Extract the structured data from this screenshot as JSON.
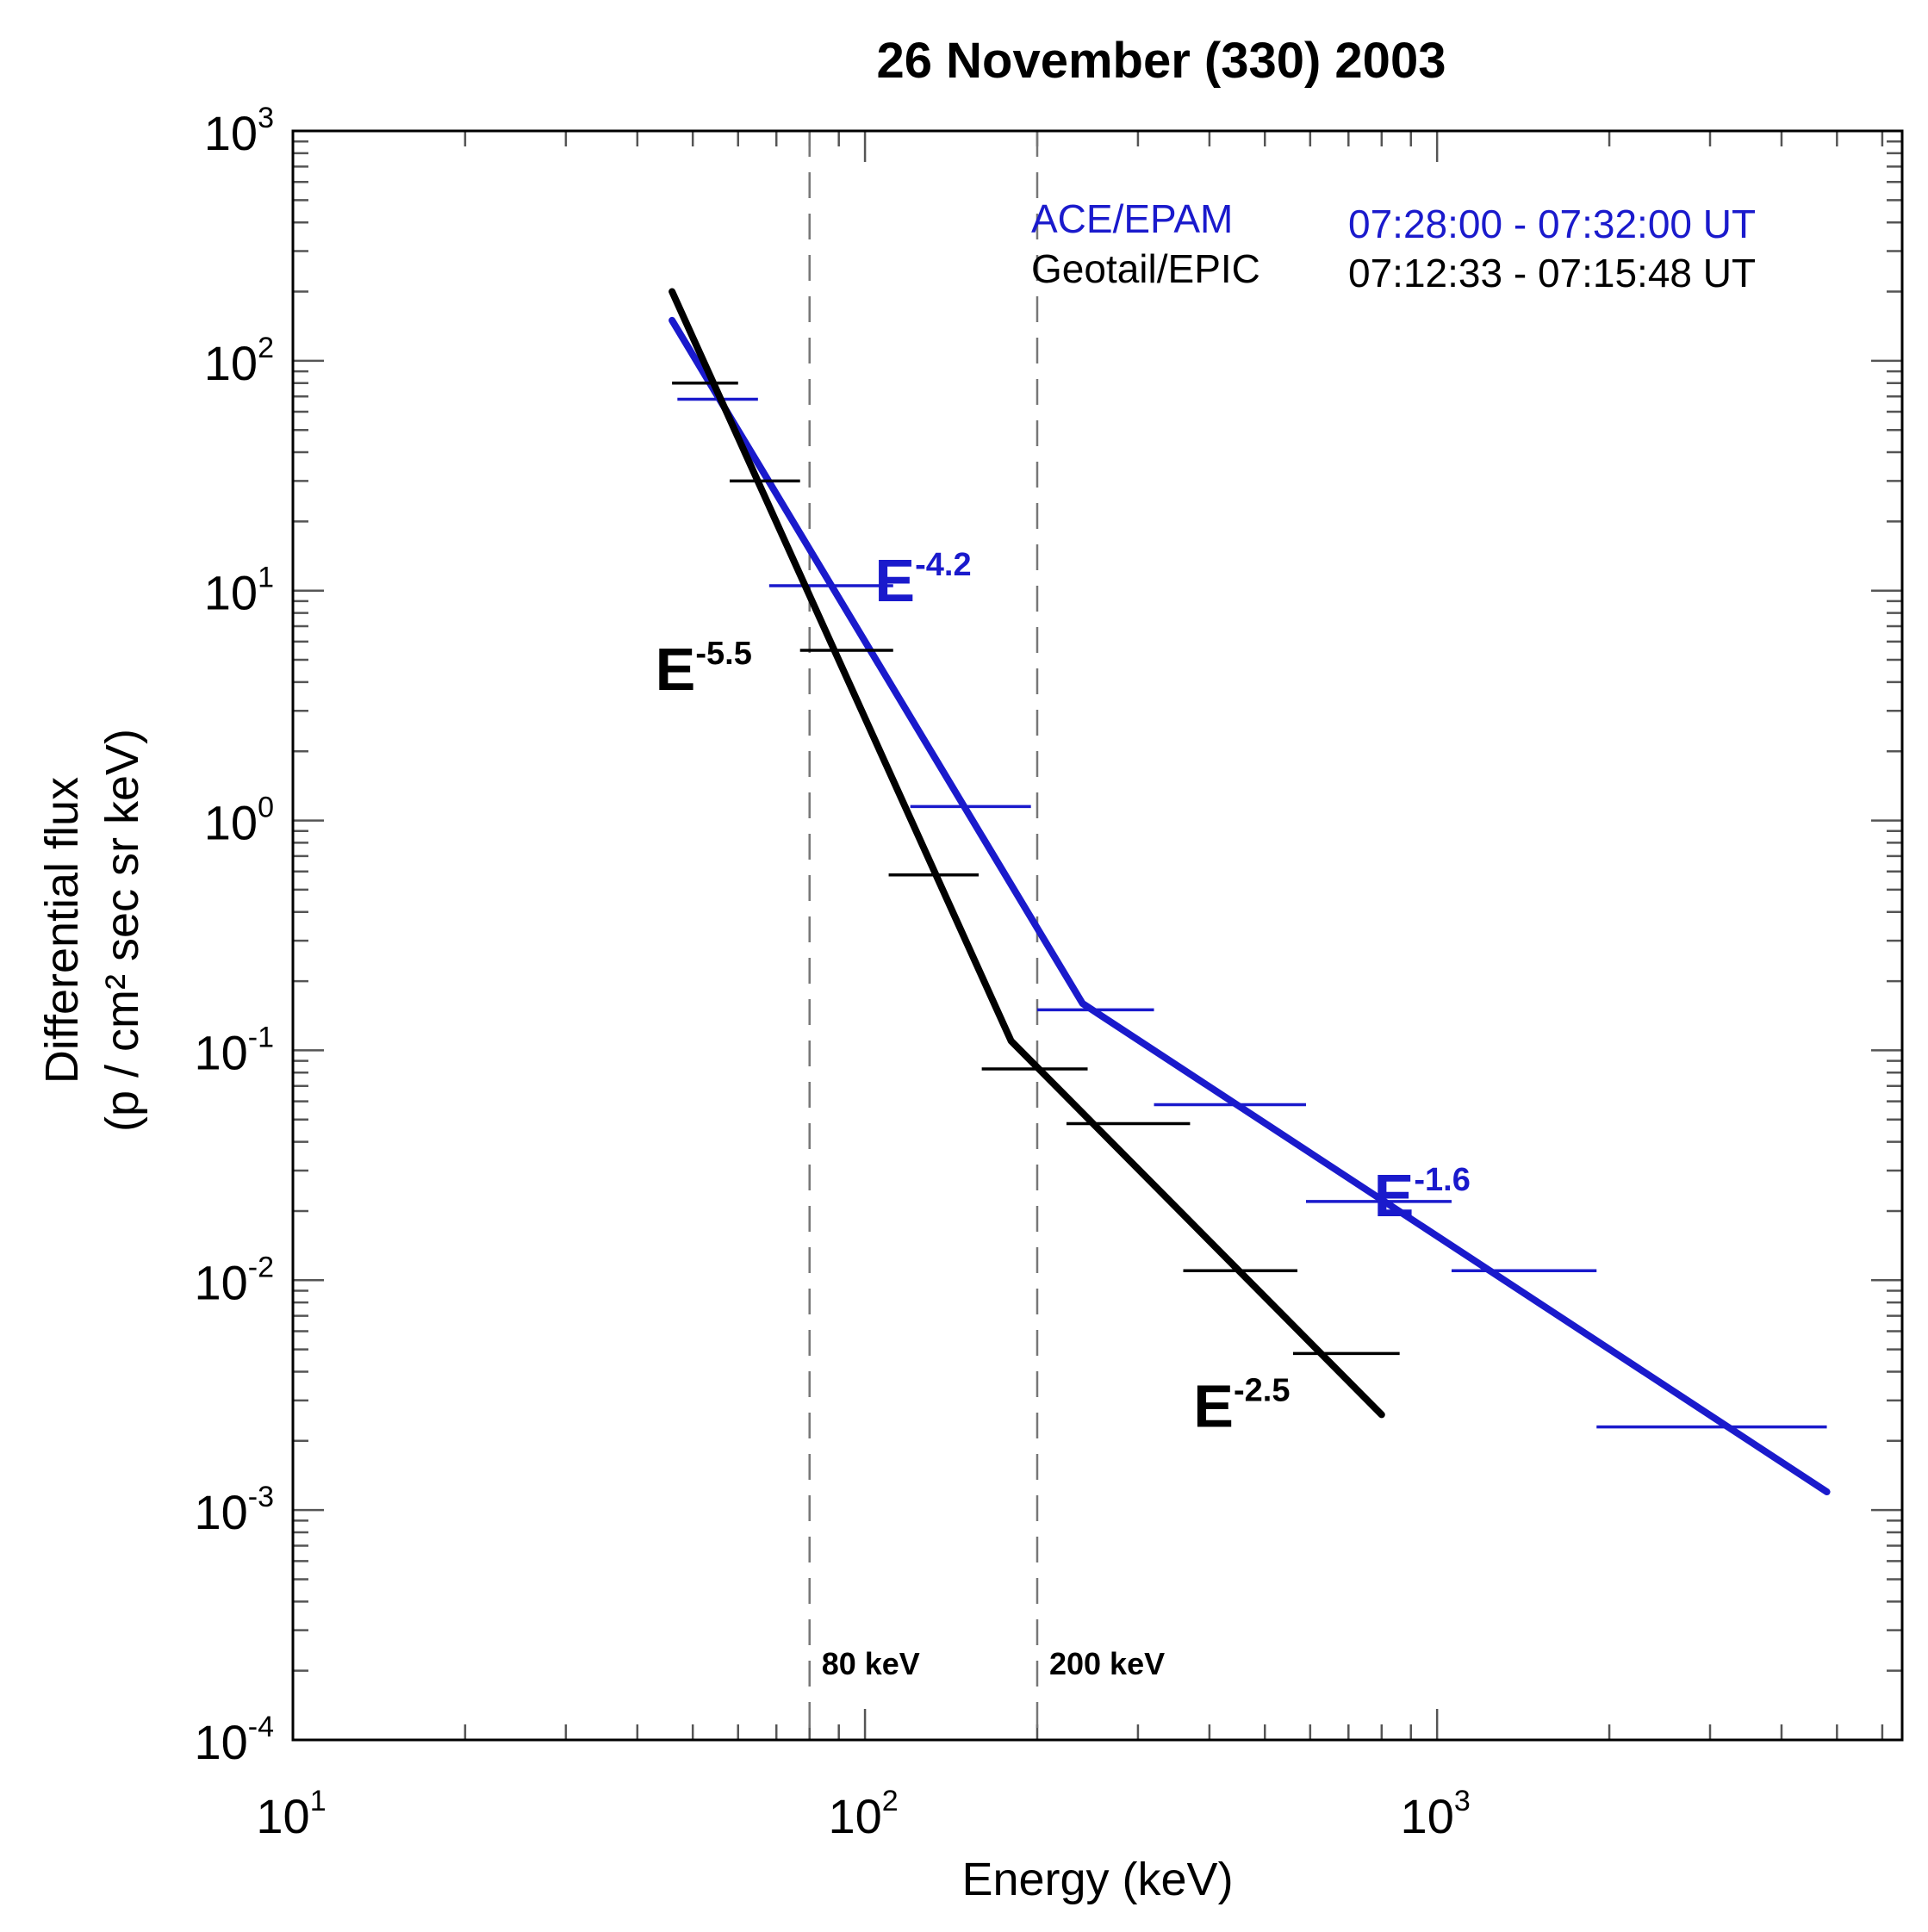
{
  "chart_data": {
    "type": "line",
    "title": "26 November (330) 2003",
    "xlabel": "Energy (keV)",
    "ylabel_line1": "Differential flux",
    "ylabel_line2": "(p / cm² sec sr keV)",
    "xscale": "log",
    "yscale": "log",
    "xlim": [
      10,
      6500
    ],
    "ylim": [
      0.0001,
      1000
    ],
    "x_ticks": [
      {
        "value": 10,
        "base": "10",
        "exp": "1"
      },
      {
        "value": 100,
        "base": "10",
        "exp": "2"
      },
      {
        "value": 1000,
        "base": "10",
        "exp": "3"
      }
    ],
    "y_ticks": [
      {
        "value": 0.0001,
        "base": "10",
        "exp": "-4"
      },
      {
        "value": 0.001,
        "base": "10",
        "exp": "-3"
      },
      {
        "value": 0.01,
        "base": "10",
        "exp": "-2"
      },
      {
        "value": 0.1,
        "base": "10",
        "exp": "-1"
      },
      {
        "value": 1,
        "base": "10",
        "exp": "0"
      },
      {
        "value": 10,
        "base": "10",
        "exp": "1"
      },
      {
        "value": 100,
        "base": "10",
        "exp": "2"
      },
      {
        "value": 1000,
        "base": "10",
        "exp": "3"
      }
    ],
    "reference_lines": [
      {
        "x": 80,
        "label": "80 keV"
      },
      {
        "x": 200,
        "label": "200 keV"
      }
    ],
    "series": [
      {
        "name": "ACE/EPAM",
        "time_range": "07:28:00 - 07:32:00 UT",
        "color": "#1a1acc",
        "bins": [
          {
            "x_lo": 47,
            "x_hi": 65,
            "y": 68
          },
          {
            "x_lo": 68,
            "x_hi": 112,
            "y": 10.5
          },
          {
            "x_lo": 120,
            "x_hi": 195,
            "y": 1.15
          },
          {
            "x_lo": 200,
            "x_hi": 320,
            "y": 0.15
          },
          {
            "x_lo": 320,
            "x_hi": 590,
            "y": 0.058
          },
          {
            "x_lo": 590,
            "x_hi": 1060,
            "y": 0.022
          },
          {
            "x_lo": 1060,
            "x_hi": 1900,
            "y": 0.011
          },
          {
            "x_lo": 1900,
            "x_hi": 4800,
            "y": 0.0023
          }
        ],
        "fit": [
          {
            "x": 46,
            "y": 150
          },
          {
            "x": 240,
            "y": 0.16
          },
          {
            "x": 4800,
            "y": 0.0012
          }
        ],
        "fit_labels": [
          {
            "base": "E",
            "exp": "-4.2",
            "x": 104,
            "y": 9.0
          },
          {
            "base": "E",
            "exp": "-1.6",
            "x": 775,
            "y": 0.019
          }
        ]
      },
      {
        "name": "Geotail/EPIC",
        "time_range": "07:12:33 - 07:15:48 UT",
        "color": "#000000",
        "bins": [
          {
            "x_lo": 46,
            "x_hi": 60,
            "y": 80
          },
          {
            "x_lo": 58,
            "x_hi": 77,
            "y": 30
          },
          {
            "x_lo": 77,
            "x_hi": 112,
            "y": 5.5
          },
          {
            "x_lo": 110,
            "x_hi": 158,
            "y": 0.58
          },
          {
            "x_lo": 160,
            "x_hi": 245,
            "y": 0.083
          },
          {
            "x_lo": 225,
            "x_hi": 370,
            "y": 0.048
          },
          {
            "x_lo": 360,
            "x_hi": 570,
            "y": 0.011
          },
          {
            "x_lo": 560,
            "x_hi": 860,
            "y": 0.0048
          }
        ],
        "fit": [
          {
            "x": 46,
            "y": 200
          },
          {
            "x": 180,
            "y": 0.11
          },
          {
            "x": 800,
            "y": 0.0026
          }
        ],
        "fit_labels": [
          {
            "base": "E",
            "exp": "-5.5",
            "x": 43,
            "y": 3.7
          },
          {
            "base": "E",
            "exp": "-2.5",
            "x": 375,
            "y": 0.0023
          }
        ]
      }
    ]
  }
}
